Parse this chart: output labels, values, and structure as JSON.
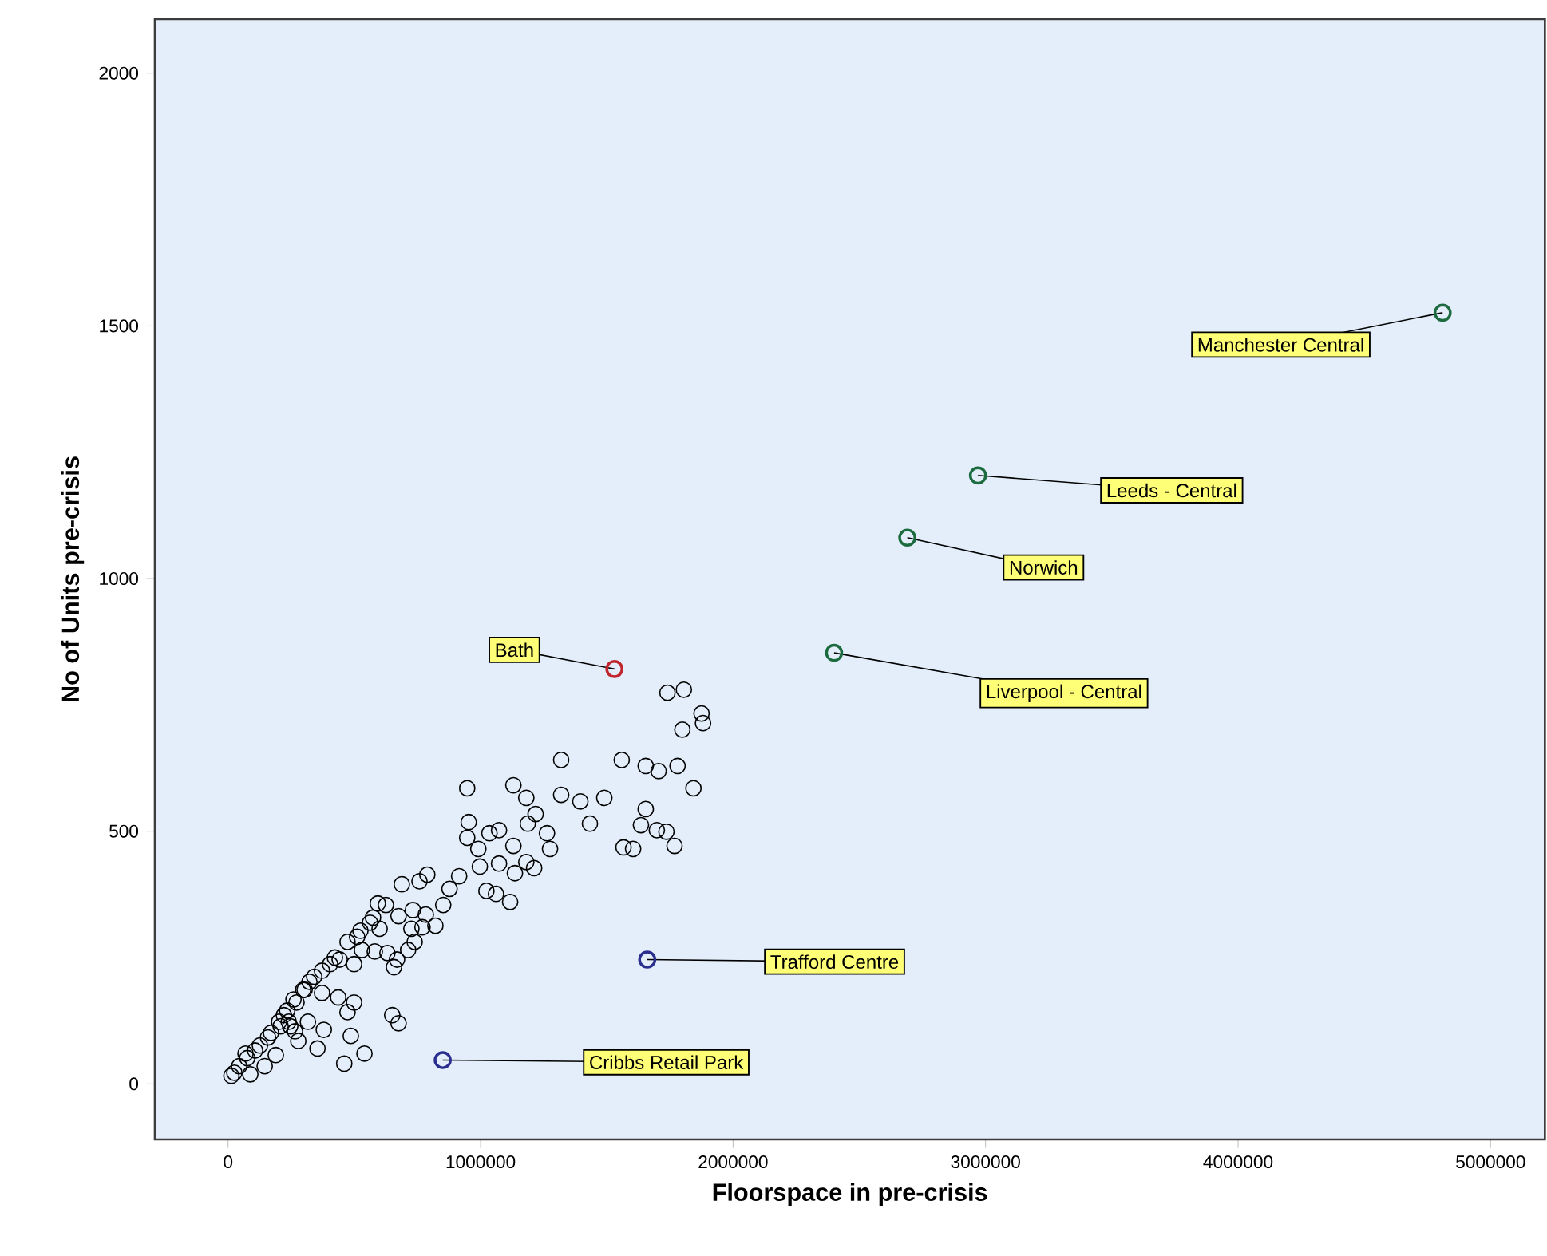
{
  "chart_data": {
    "type": "scatter",
    "xlabel": "Floorspace in pre-crisis",
    "ylabel": "No of Units pre-crisis",
    "xlim": [
      -290000,
      5215000
    ],
    "ylim": [
      -110,
      2107
    ],
    "xticks": [
      0,
      1000000,
      2000000,
      3000000,
      4000000,
      5000000
    ],
    "yticks": [
      0,
      500,
      1000,
      1500,
      2000
    ],
    "grid": false,
    "marker": "circle",
    "series": [
      {
        "color": "#000000",
        "x": [
          1740000,
          1805000,
          1875000,
          1881000,
          1799000,
          1559000,
          1319000,
          1654000,
          1705000,
          1780000,
          1843000,
          1654000,
          1635000,
          1698000,
          1736000,
          1768000,
          1604000,
          1319000,
          1490000,
          1395000,
          1433000,
          1566000,
          947000,
          1130000,
          1181000,
          1218000,
          1187000,
          1263000,
          953000,
          947000,
          991000,
          1035000,
          1073000,
          1130000,
          1275000,
          1181000,
          1073000,
          1212000,
          1136000,
          1117000,
          1023000,
          1061000,
          997000,
          915000,
          877000,
          852000,
          789000,
          758000,
          688000,
          593000,
          600000,
          675000,
          726000,
          732000,
          783000,
          770000,
          821000,
          739000,
          713000,
          631000,
          669000,
          657000,
          581000,
          530000,
          562000,
          511000,
          499000,
          442000,
          404000,
          341000,
          303000,
          259000,
          234000,
          202000,
          170000,
          126000,
          76000,
          44000,
          25000,
          13000,
          107000,
          158000,
          221000,
          271000,
          322000,
          372000,
          423000,
          473000,
          524000,
          574000,
          625000,
          372000,
          436000,
          499000,
          316000,
          278000,
          189000,
          145000,
          88000,
          69000,
          246000,
          297000,
          650000,
          675000,
          473000,
          460000,
          540000,
          486000,
          379000,
          354000,
          265000,
          208000,
          240000
        ],
        "values": [
          774,
          780,
          733,
          714,
          701,
          641,
          641,
          629,
          619,
          629,
          585,
          544,
          512,
          502,
          499,
          471,
          465,
          572,
          566,
          559,
          515,
          468,
          585,
          591,
          566,
          534,
          515,
          496,
          518,
          487,
          465,
          496,
          502,
          471,
          465,
          439,
          436,
          427,
          417,
          360,
          382,
          376,
          430,
          411,
          386,
          354,
          414,
          401,
          395,
          357,
          307,
          332,
          307,
          344,
          335,
          310,
          313,
          281,
          265,
          259,
          246,
          231,
          262,
          265,
          319,
          291,
          237,
          246,
          237,
          212,
          186,
          167,
          145,
          123,
          101,
          76,
          51,
          35,
          22,
          16,
          66,
          92,
          136,
          161,
          202,
          224,
          250,
          281,
          303,
          329,
          354,
          180,
          171,
          161,
          123,
          85,
          57,
          35,
          19,
          60,
          114,
          186,
          136,
          120,
          142,
          40,
          60,
          95,
          107,
          70,
          104,
          114,
          123
        ]
      },
      {
        "color": "#c0262d",
        "x": [
          1530000
        ],
        "values": [
          821
        ]
      },
      {
        "color": "#1b6b3f",
        "x": [
          4810000,
          2970000,
          2690000,
          2400000
        ],
        "values": [
          1526,
          1204,
          1081,
          853
        ]
      },
      {
        "color": "#2a2f8f",
        "x": [
          1660000,
          850000
        ],
        "values": [
          246,
          47
        ]
      }
    ],
    "annotations": [
      {
        "text": "Manchester Central",
        "x": 4810000,
        "y": 1526
      },
      {
        "text": "Leeds - Central",
        "x": 2970000,
        "y": 1204
      },
      {
        "text": "Norwich",
        "x": 2690000,
        "y": 1081
      },
      {
        "text": "Liverpool - Central",
        "x": 2400000,
        "y": 853
      },
      {
        "text": "Bath",
        "x": 1530000,
        "y": 821
      },
      {
        "text": "Trafford Centre",
        "x": 1660000,
        "y": 246
      },
      {
        "text": "Cribbs Retail Park",
        "x": 850000,
        "y": 47
      }
    ]
  }
}
